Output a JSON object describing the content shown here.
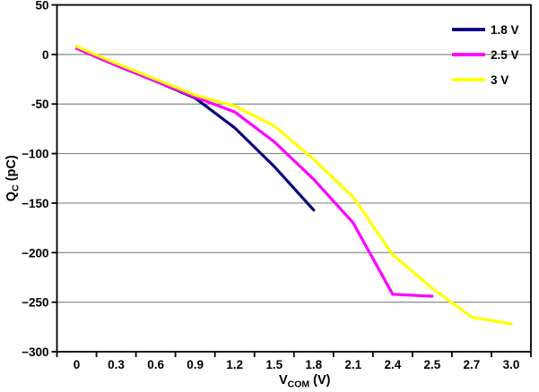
{
  "chart_data": {
    "type": "line",
    "title": "",
    "xlabel": {
      "base": "V",
      "sub": "COM",
      "suffix": " (V)"
    },
    "ylabel": {
      "base": "Q",
      "sub": "C",
      "suffix": " (pC)"
    },
    "categories": [
      "0",
      "0.3",
      "0.6",
      "0.9",
      "1.2",
      "1.5",
      "1.8",
      "2.1",
      "2.4",
      "2.5",
      "2.7",
      "3.0"
    ],
    "ylim": [
      -300,
      50
    ],
    "y_ticks": [
      {
        "value": 50,
        "label": "50"
      },
      {
        "value": 0,
        "label": "0"
      },
      {
        "value": -50,
        "label": "-50"
      },
      {
        "value": -100,
        "label": "−100"
      },
      {
        "value": -150,
        "label": "−150"
      },
      {
        "value": -200,
        "label": "−200"
      },
      {
        "value": -250,
        "label": "−250"
      },
      {
        "value": -300,
        "label": "−300"
      }
    ],
    "gridline_values": [
      0,
      -50,
      -100,
      -150,
      -200,
      -250
    ],
    "grid": "horizontal",
    "legend_position": "top-right-inside",
    "series": [
      {
        "name": "1.8 V",
        "color": "#000080",
        "values": [
          6,
          -11,
          -27,
          -44,
          -74,
          -113,
          -157,
          null,
          null,
          null,
          null,
          null
        ]
      },
      {
        "name": "2.5 V",
        "color": "#FF00FF",
        "values": [
          6,
          -11,
          -27,
          -43,
          -58,
          -88,
          -126,
          -170,
          -242,
          -244,
          null,
          null
        ]
      },
      {
        "name": "3 V",
        "color": "#FFFF00",
        "values": [
          8,
          -9,
          -25,
          -41,
          -52,
          -72,
          -106,
          -144,
          -202,
          -236,
          -265,
          -272
        ]
      }
    ],
    "colors": {
      "axis": "#000000",
      "grid": "#8a8a8a",
      "background": "#ffffff",
      "text": "#000000"
    }
  }
}
